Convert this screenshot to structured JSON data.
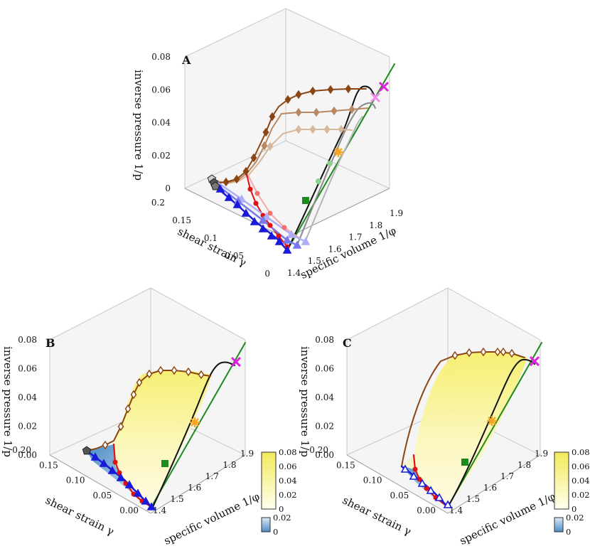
{
  "colors": {
    "brown": "#8B4513",
    "brown_light": "#B98862",
    "brown_lighter": "#D8B89B",
    "black": "#111111",
    "gray": "#8a8a8a",
    "gray_light": "#b4b4b4",
    "green": "#1c8a1c",
    "green_light": "#8ccf8c",
    "red": "#e01010",
    "red_light": "#f07070",
    "red_lighter": "#f6a6a6",
    "blue": "#1a1adc",
    "blue_light": "#7878ee",
    "blue_lighter": "#aeaef6",
    "magenta": "#e020e0",
    "magenta_light": "#f08af0",
    "orange": "#f5a623",
    "pentagon": "#555555",
    "yellow_top": "#f2ea5a",
    "yellow_bottom": "#fffff0",
    "blue_top": "#dbe9f6",
    "blue_bottom": "#4a8cc4"
  },
  "chart_data": [
    {
      "panel": "A",
      "type": "scatter3d",
      "title": "A",
      "axes": {
        "x": {
          "label": "specific volume 1/φ",
          "range": [
            1.4,
            1.95
          ],
          "ticks": [
            "1.4",
            "1.5",
            "1.6",
            "1.7",
            "1.8",
            "1.9"
          ]
        },
        "y": {
          "label": "shear strain γ",
          "range": [
            0,
            0.22
          ],
          "ticks": [
            "0",
            "0.05",
            "0.1",
            "0.15",
            "0.2"
          ]
        },
        "z": {
          "label": "inverse pressure 1/p",
          "range": [
            0,
            0.08
          ],
          "ticks": [
            "0",
            "0.02",
            "0.04",
            "0.06",
            "0.08"
          ]
        }
      },
      "series": [
        {
          "name": "brown diamond path",
          "marker": "diamond",
          "shade": 0
        },
        {
          "name": "brown diamond path (lighter)",
          "marker": "diamond",
          "shade": 1
        },
        {
          "name": "brown diamond path (lightest)",
          "marker": "diamond",
          "shade": 2
        },
        {
          "name": "red circle path",
          "marker": "circle",
          "shade": 0
        },
        {
          "name": "red circle path (lighter)",
          "marker": "circle",
          "shade": 1
        },
        {
          "name": "blue triangle path",
          "marker": "triangle",
          "shade": 0
        },
        {
          "name": "blue triangle path (lighter)",
          "marker": "triangle",
          "shade": 1
        },
        {
          "name": "black curve",
          "marker": "none"
        },
        {
          "name": "green critical line",
          "marker": "none"
        }
      ],
      "markers": [
        "cross",
        "star",
        "square",
        "pentagon"
      ]
    },
    {
      "panel": "B",
      "type": "surface3d",
      "title": "B",
      "axes": {
        "x": {
          "label": "specific volume 1/φ",
          "range": [
            1.4,
            1.95
          ],
          "ticks": [
            "1.4",
            "1.5",
            "1.6",
            "1.7",
            "1.8",
            "1.9"
          ]
        },
        "y": {
          "label": "shear strain γ",
          "range": [
            0,
            0.22
          ],
          "ticks": [
            "0.00",
            "0.05",
            "0.10",
            "0.15",
            "0.20"
          ]
        },
        "z": {
          "label": "inverse pressure 1/p",
          "range": [
            0,
            0.08
          ],
          "ticks": [
            "0.00",
            "0.02",
            "0.04",
            "0.06",
            "0.08"
          ]
        }
      },
      "colorbars": [
        {
          "ticks": [
            "0.08",
            "0.06",
            "0.04",
            "0.02",
            "0"
          ],
          "range": [
            0,
            0.08
          ],
          "colormap": "yellow"
        },
        {
          "ticks": [
            "0.02",
            "0"
          ],
          "range": [
            0,
            0.02
          ],
          "colormap": "blue"
        }
      ]
    },
    {
      "panel": "C",
      "type": "surface3d",
      "title": "C",
      "axes": {
        "x": {
          "label": "specific volume 1/φ",
          "range": [
            1.4,
            1.95
          ],
          "ticks": [
            "1.4",
            "1.5",
            "1.6",
            "1.7",
            "1.8",
            "1.9"
          ]
        },
        "y": {
          "label": "shear strain γ",
          "range": [
            0,
            0.22
          ],
          "ticks": [
            "0.00",
            "0.05",
            "0.10",
            "0.15",
            "0.20"
          ]
        },
        "z": {
          "label": "inverse pressure 1/p",
          "range": [
            0,
            0.08
          ],
          "ticks": [
            "0.00",
            "0.02",
            "0.04",
            "0.06",
            "0.08"
          ]
        }
      },
      "colorbars": [
        {
          "ticks": [
            "0.08",
            "0.06",
            "0.04",
            "0.02",
            "0"
          ],
          "range": [
            0,
            0.08
          ],
          "colormap": "yellow"
        },
        {
          "ticks": [
            "0.02",
            "0"
          ],
          "range": [
            0,
            0.02
          ],
          "colormap": "blue"
        }
      ]
    }
  ]
}
